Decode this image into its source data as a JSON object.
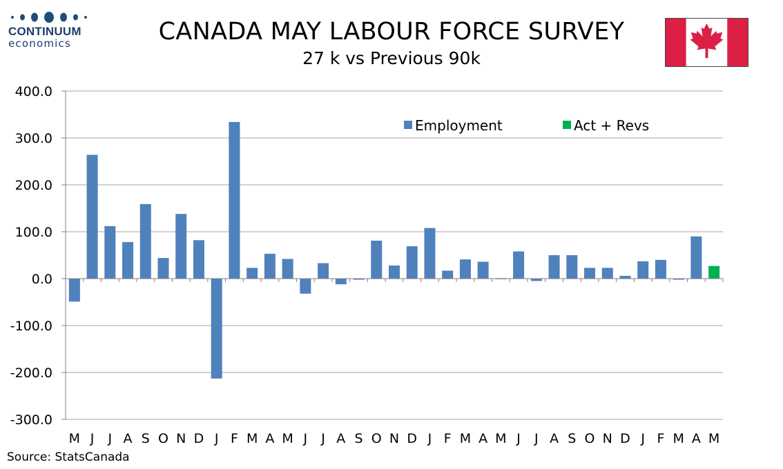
{
  "logo": {
    "name": "CONTINUUM",
    "sub": "economics"
  },
  "title": "CANADA MAY LABOUR FORCE SURVEY",
  "subtitle": "27 k vs Previous 90k",
  "source": "Source: StatsCanada",
  "colors": {
    "employment": "#4f81bd",
    "act_revs": "#00b050",
    "flag_red": "#dc2045"
  },
  "chart_data": {
    "type": "bar",
    "categories": [
      "M",
      "J",
      "J",
      "A",
      "S",
      "O",
      "N",
      "D",
      "J",
      "F",
      "M",
      "A",
      "M",
      "J",
      "J",
      "A",
      "S",
      "O",
      "N",
      "D",
      "J",
      "F",
      "M",
      "A",
      "M",
      "J",
      "J",
      "A",
      "S",
      "O",
      "N",
      "D",
      "J",
      "F",
      "M",
      "A",
      "M"
    ],
    "series": [
      {
        "name": "Employment",
        "values": [
          -49,
          264,
          112,
          78,
          159,
          44,
          138,
          82,
          -213,
          334,
          23,
          53,
          42,
          -32,
          33,
          -12,
          0,
          81,
          28,
          69,
          108,
          17,
          41,
          36,
          1,
          58,
          -5,
          50,
          50,
          23,
          23,
          6,
          37,
          40,
          -2,
          90,
          null
        ]
      },
      {
        "name": "Act + Revs",
        "values": [
          null,
          null,
          null,
          null,
          null,
          null,
          null,
          null,
          null,
          null,
          null,
          null,
          null,
          null,
          null,
          null,
          null,
          null,
          null,
          null,
          null,
          null,
          null,
          null,
          null,
          null,
          null,
          null,
          null,
          null,
          null,
          null,
          null,
          null,
          null,
          null,
          27
        ]
      }
    ],
    "yticks": [
      "400.0",
      "300.0",
      "200.0",
      "100.0",
      "0.0",
      "-100.0",
      "-200.0",
      "-300.0"
    ],
    "ylim": [
      -300,
      400
    ],
    "grid": true,
    "legend_position": "top-right"
  }
}
